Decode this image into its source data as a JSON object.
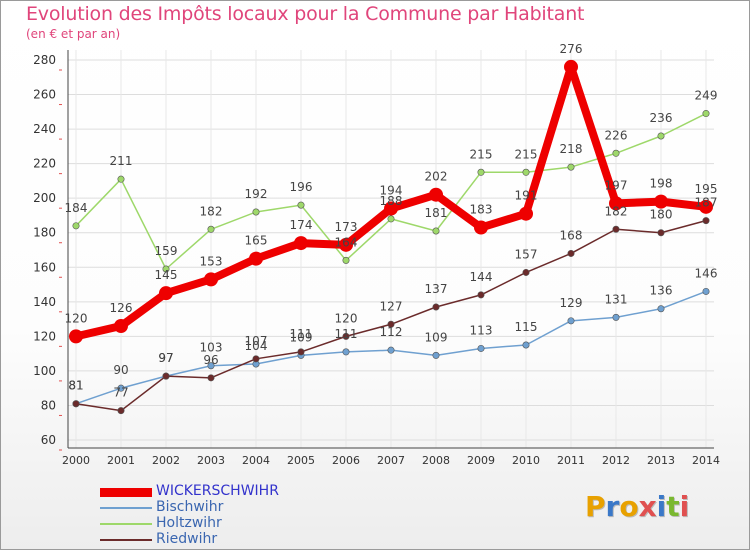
{
  "header": {
    "title": "Evolution des Impôts locaux pour la Commune par Habitant",
    "subtitle": "(en € et par an)"
  },
  "logo": {
    "text": "Proxiti",
    "colors": [
      "#e8a100",
      "#3a78c8",
      "#e8a100",
      "#e05050",
      "#3a78c8",
      "#7ab830",
      "#e05050"
    ]
  },
  "chart_data": {
    "type": "line",
    "title": "Evolution des Impôts locaux pour la Commune par Habitant",
    "subtitle": "(en € et par an)",
    "xlabel": "",
    "ylabel": "",
    "x": [
      "2000",
      "2001",
      "2002",
      "2003",
      "2004",
      "2005",
      "2006",
      "2007",
      "2008",
      "2009",
      "2010",
      "2011",
      "2012",
      "2013",
      "2014"
    ],
    "ylim": [
      60,
      280
    ],
    "yticks": [
      60,
      80,
      100,
      120,
      140,
      160,
      180,
      200,
      220,
      240,
      260,
      280
    ],
    "grid": "horizontal",
    "legend_position": "bottom-left",
    "series": [
      {
        "name": "WICKERSCHWIHR",
        "color": "#ee0000",
        "values": [
          120,
          126,
          145,
          153,
          165,
          174,
          173,
          194,
          202,
          183,
          191,
          276,
          197,
          198,
          195
        ]
      },
      {
        "name": "Bischwihr",
        "color": "#6fa0d0",
        "values": [
          81,
          90,
          97,
          103,
          104,
          109,
          111,
          112,
          109,
          113,
          115,
          129,
          131,
          136,
          146
        ]
      },
      {
        "name": "Holtzwihr",
        "color": "#9ed86a",
        "values": [
          184,
          211,
          159,
          182,
          192,
          196,
          164,
          188,
          181,
          215,
          215,
          218,
          226,
          236,
          249
        ]
      },
      {
        "name": "Riedwihr",
        "color": "#6b2b2b",
        "values": [
          81,
          77,
          97,
          96,
          107,
          111,
          120,
          127,
          137,
          144,
          157,
          168,
          182,
          180,
          187
        ]
      }
    ]
  }
}
